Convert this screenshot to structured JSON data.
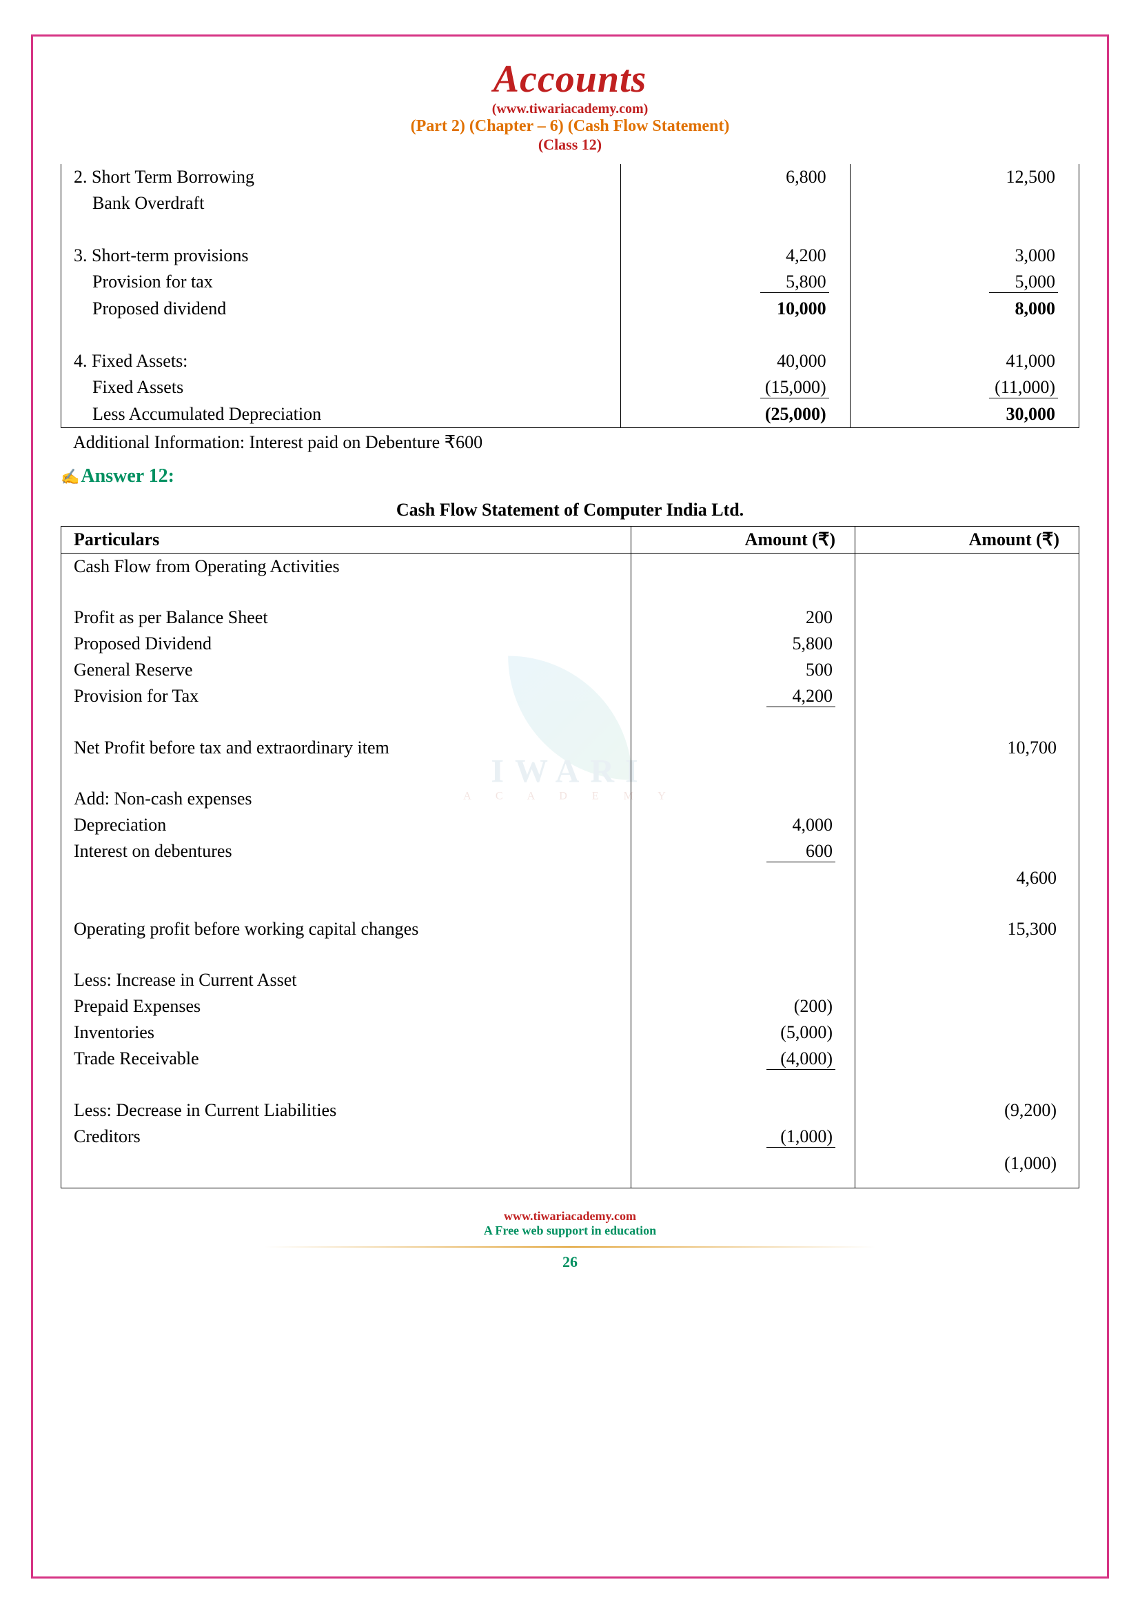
{
  "header": {
    "title": "Accounts",
    "url": "(www.tiwariacademy.com)",
    "part_chapter": "(Part 2) (Chapter – 6) (Cash Flow Statement)",
    "class_info": "(Class 12)"
  },
  "table1": {
    "rows": [
      {
        "label": "2. Short Term Borrowing",
        "indent": false,
        "c1": "6,800",
        "c2": "12,500",
        "c1_style": "",
        "c2_style": ""
      },
      {
        "label": "Bank Overdraft",
        "indent": true,
        "c1": "",
        "c2": "",
        "c1_style": "",
        "c2_style": ""
      },
      {
        "label": "",
        "indent": false,
        "c1": "",
        "c2": "",
        "c1_style": "",
        "c2_style": ""
      },
      {
        "label": "3. Short-term provisions",
        "indent": false,
        "c1": "4,200",
        "c2": "3,000",
        "c1_style": "",
        "c2_style": ""
      },
      {
        "label": "Provision for tax",
        "indent": true,
        "c1": "5,800",
        "c2": "5,000",
        "c1_style": "ub",
        "c2_style": "ub"
      },
      {
        "label": "Proposed dividend",
        "indent": true,
        "c1": "10,000",
        "c2": "8,000",
        "c1_style": "bold",
        "c2_style": "bold",
        "bold": true
      },
      {
        "label": "",
        "indent": false,
        "c1": "",
        "c2": "",
        "c1_style": "",
        "c2_style": ""
      },
      {
        "label": "4. Fixed Assets:",
        "indent": false,
        "c1": "40,000",
        "c2": "41,000",
        "c1_style": "",
        "c2_style": ""
      },
      {
        "label": "Fixed Assets",
        "indent": true,
        "c1": "(15,000)",
        "c2": "(11,000)",
        "c1_style": "ub",
        "c2_style": "ub"
      },
      {
        "label": "Less Accumulated Depreciation",
        "indent": true,
        "c1": "(25,000)",
        "c2": "30,000",
        "c1_style": "bold",
        "c2_style": "bold",
        "bold": true
      }
    ]
  },
  "additional_info": "Additional Information: Interest paid on Debenture ₹600",
  "answer_heading": "Answer 12:",
  "table2": {
    "title": "Cash Flow Statement of Computer India Ltd.",
    "headers": {
      "p": "Particulars",
      "c1": "Amount (₹)",
      "c2": "Amount (₹)"
    },
    "rows": [
      {
        "type": "row",
        "p": "Cash Flow from Operating Activities",
        "c1": "",
        "c2": ""
      },
      {
        "type": "spacer"
      },
      {
        "type": "row",
        "p": "Profit as per Balance Sheet",
        "c1": "200",
        "c2": ""
      },
      {
        "type": "row",
        "p": "Proposed Dividend",
        "c1": "5,800",
        "c2": ""
      },
      {
        "type": "row",
        "p": "General Reserve",
        "c1": "500",
        "c2": ""
      },
      {
        "type": "row",
        "p": "Provision for Tax",
        "c1": "4,200",
        "c1_style": "ub",
        "c2": ""
      },
      {
        "type": "spacer"
      },
      {
        "type": "row",
        "p": "Net Profit before tax and extraordinary item",
        "c1": "",
        "c2": "10,700"
      },
      {
        "type": "spacer"
      },
      {
        "type": "row",
        "p": "Add: Non-cash expenses",
        "c1": "",
        "c2": ""
      },
      {
        "type": "row",
        "p": "Depreciation",
        "c1": "4,000",
        "c2": ""
      },
      {
        "type": "row",
        "p": "Interest on debentures",
        "c1": "600",
        "c1_style": "ub",
        "c2": ""
      },
      {
        "type": "row",
        "p": "",
        "c1": "",
        "c2": "4,600"
      },
      {
        "type": "spacer"
      },
      {
        "type": "row",
        "p": "Operating profit before working capital changes",
        "c1": "",
        "c2": "15,300"
      },
      {
        "type": "spacer"
      },
      {
        "type": "row",
        "p": "Less: Increase in Current Asset",
        "c1": "",
        "c2": ""
      },
      {
        "type": "row",
        "p": "Prepaid Expenses",
        "c1": "(200)",
        "c2": ""
      },
      {
        "type": "row",
        "p": "Inventories",
        "c1": "(5,000)",
        "c2": ""
      },
      {
        "type": "row",
        "p": "Trade Receivable",
        "c1": "(4,000)",
        "c1_style": "ub",
        "c2": ""
      },
      {
        "type": "spacer"
      },
      {
        "type": "row",
        "p": "Less: Decrease in Current Liabilities",
        "c1": "",
        "c2": "(9,200)"
      },
      {
        "type": "row",
        "p": "Creditors",
        "c1": "(1,000)",
        "c1_style": "ub",
        "c2": ""
      },
      {
        "type": "row",
        "p": "",
        "c1": "",
        "c2": "(1,000)"
      }
    ]
  },
  "footer": {
    "url": "www.tiwariacademy.com",
    "tag": "A Free web support in education",
    "page": "26"
  },
  "watermark": {
    "text": "IWARI",
    "sub": "A  C  A  D  E  M  Y"
  }
}
